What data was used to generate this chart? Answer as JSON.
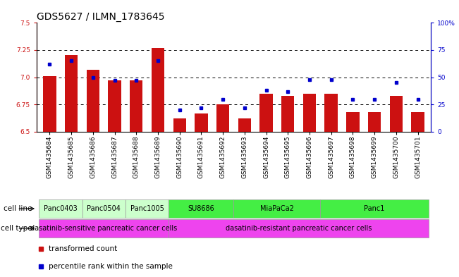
{
  "title": "GDS5627 / ILMN_1783645",
  "samples": [
    "GSM1435684",
    "GSM1435685",
    "GSM1435686",
    "GSM1435687",
    "GSM1435688",
    "GSM1435689",
    "GSM1435690",
    "GSM1435691",
    "GSM1435692",
    "GSM1435693",
    "GSM1435694",
    "GSM1435695",
    "GSM1435696",
    "GSM1435697",
    "GSM1435698",
    "GSM1435699",
    "GSM1435700",
    "GSM1435701"
  ],
  "bar_values": [
    7.01,
    7.2,
    7.07,
    6.97,
    6.97,
    7.27,
    6.62,
    6.67,
    6.75,
    6.62,
    6.85,
    6.83,
    6.85,
    6.85,
    6.68,
    6.68,
    6.83,
    6.68
  ],
  "percentile_values": [
    62,
    65,
    50,
    47,
    47,
    65,
    20,
    22,
    30,
    22,
    38,
    37,
    48,
    48,
    30,
    30,
    45,
    30
  ],
  "bar_color": "#cc1111",
  "dot_color": "#0000cc",
  "ylim_left": [
    6.5,
    7.5
  ],
  "ylim_right": [
    0,
    100
  ],
  "yticks_left": [
    6.5,
    6.75,
    7.0,
    7.25,
    7.5
  ],
  "yticks_right": [
    0,
    25,
    50,
    75,
    100
  ],
  "ytick_labels_right": [
    "0",
    "25",
    "50",
    "75",
    "100%"
  ],
  "grid_lines": [
    6.75,
    7.0,
    7.25
  ],
  "cell_line_groups": [
    {
      "label": "Panc0403",
      "start": 0,
      "end": 2,
      "color": "#ccffcc"
    },
    {
      "label": "Panc0504",
      "start": 2,
      "end": 4,
      "color": "#ccffcc"
    },
    {
      "label": "Panc1005",
      "start": 4,
      "end": 6,
      "color": "#ccffcc"
    },
    {
      "label": "SU8686",
      "start": 6,
      "end": 9,
      "color": "#44ee44"
    },
    {
      "label": "MiaPaCa2",
      "start": 9,
      "end": 13,
      "color": "#44ee44"
    },
    {
      "label": "Panc1",
      "start": 13,
      "end": 18,
      "color": "#44ee44"
    }
  ],
  "cell_type_groups": [
    {
      "label": "dasatinib-sensitive pancreatic cancer cells",
      "start": 0,
      "end": 6,
      "color": "#ee44ee"
    },
    {
      "label": "dasatinib-resistant pancreatic cancer cells",
      "start": 6,
      "end": 18,
      "color": "#ee44ee"
    }
  ],
  "background_color": "#ffffff",
  "title_fontsize": 10,
  "tick_fontsize": 6.5,
  "bar_width": 0.6
}
